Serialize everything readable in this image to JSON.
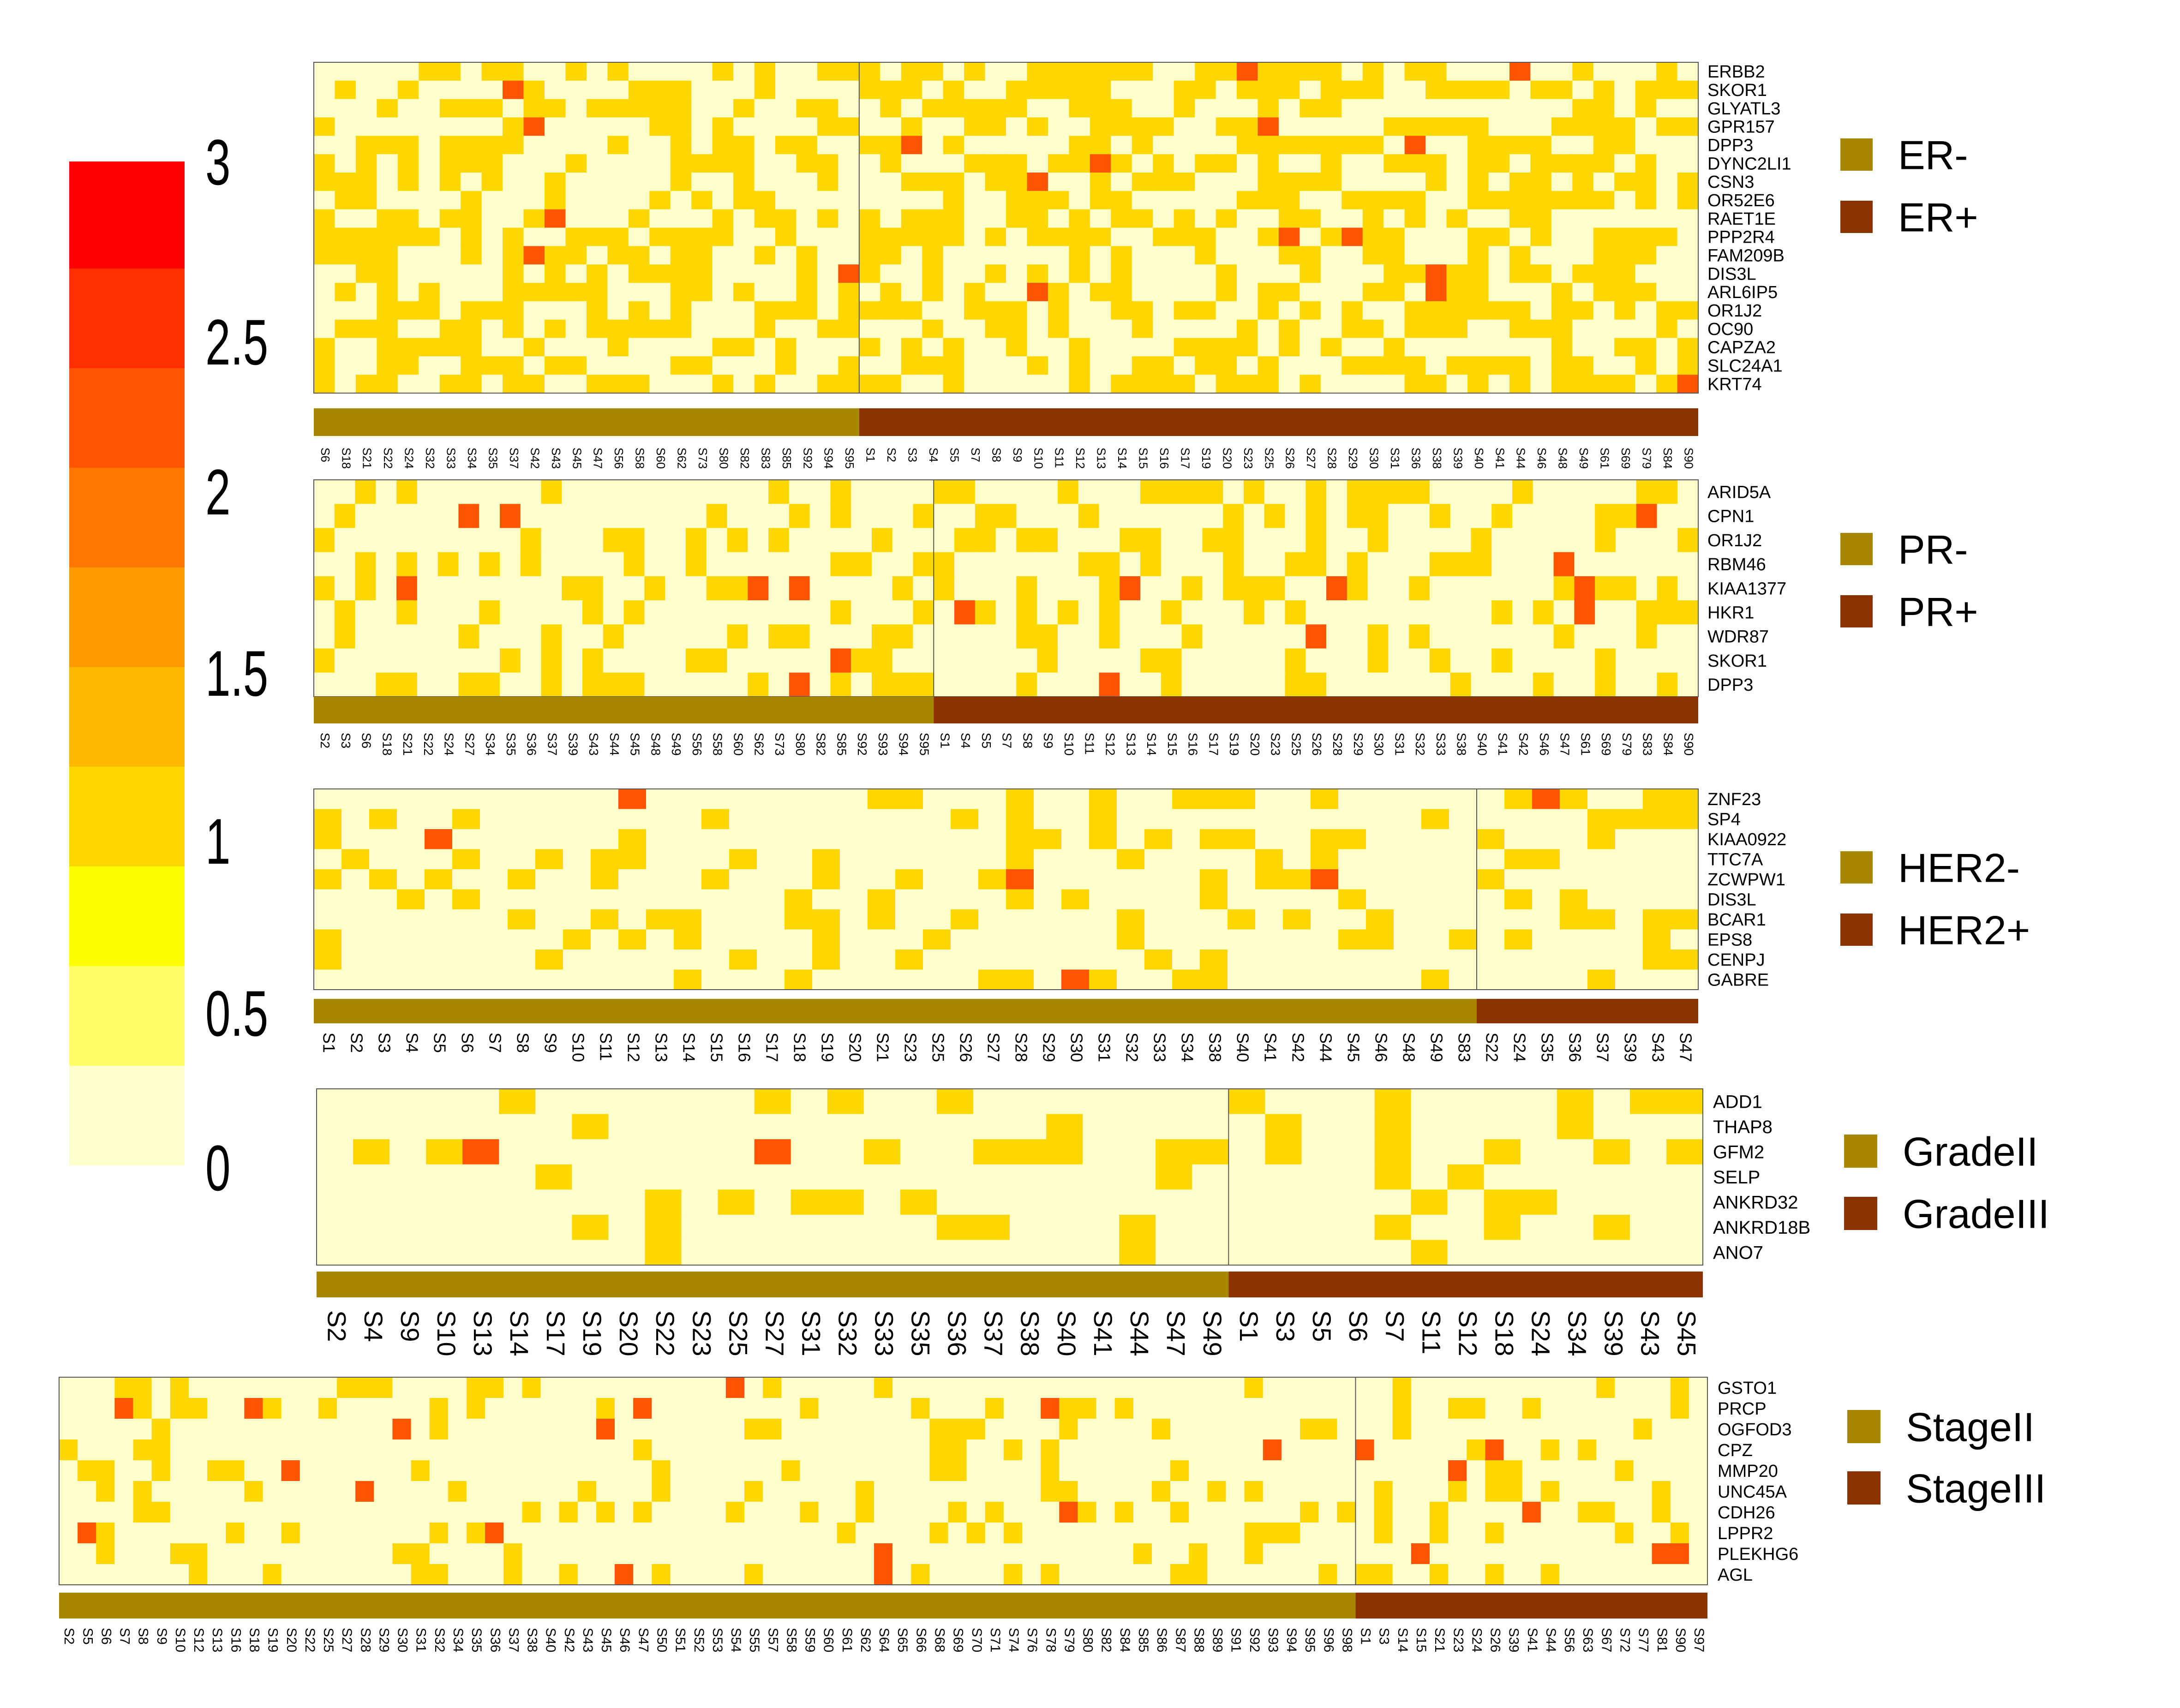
{
  "colors": {
    "scale": [
      "#FFFFCC",
      "#FFFF66",
      "#FFFF00",
      "#FFD700",
      "#FFB800",
      "#FF9900",
      "#FF7700",
      "#FF5500",
      "#FF2F00",
      "#FF0000"
    ],
    "neg": "#A88700",
    "pos": "#8A3300"
  },
  "chart_data": {
    "type": "heatmap",
    "colorbar": {
      "ticks": [
        "3",
        "2.5",
        "2",
        "1.5",
        "1",
        "0.5",
        "0"
      ],
      "range": [
        0,
        3
      ]
    },
    "panels": [
      {
        "legend": [
          "ER-",
          "ER+"
        ],
        "genes": [
          "ERBB2",
          "SKOR1",
          "GLYATL3",
          "GPR157",
          "DPP3",
          "DYNC2LI1",
          "CSN3",
          "OR52E6",
          "RAET1E",
          "PPP2R4",
          "FAM209B",
          "DIS3L",
          "ARL6IP5",
          "OR1J2",
          "OC90",
          "CAPZA2",
          "SLC24A1",
          "KRT74"
        ],
        "samples_neg": [
          "S6",
          "S18",
          "S21",
          "S22",
          "S24",
          "S32",
          "S33",
          "S34",
          "S35",
          "S37",
          "S42",
          "S43",
          "S45",
          "S47",
          "S56",
          "S58",
          "S60",
          "S62",
          "S73",
          "S80",
          "S82",
          "S83",
          "S85",
          "S92",
          "S94",
          "S95"
        ],
        "samples_pos": [
          "S1",
          "S2",
          "S3",
          "S4",
          "S5",
          "S7",
          "S8",
          "S9",
          "S10",
          "S11",
          "S12",
          "S13",
          "S14",
          "S15",
          "S16",
          "S17",
          "S19",
          "S20",
          "S23",
          "S25",
          "S26",
          "S27",
          "S28",
          "S29",
          "S30",
          "S31",
          "S36",
          "S38",
          "S39",
          "S40",
          "S41",
          "S44",
          "S46",
          "S48",
          "S49",
          "S61",
          "S69",
          "S79",
          "S84",
          "S90"
        ]
      },
      {
        "legend": [
          "PR-",
          "PR+"
        ],
        "genes": [
          "ARID5A",
          "CPN1",
          "OR1J2",
          "RBM46",
          "KIAA1377",
          "HKR1",
          "WDR87",
          "SKOR1",
          "DPP3"
        ],
        "samples_neg": [
          "S2",
          "S3",
          "S6",
          "S18",
          "S21",
          "S22",
          "S24",
          "S27",
          "S34",
          "S35",
          "S36",
          "S37",
          "S39",
          "S43",
          "S44",
          "S45",
          "S48",
          "S49",
          "S56",
          "S58",
          "S60",
          "S62",
          "S73",
          "S80",
          "S82",
          "S85",
          "S92",
          "S93",
          "S94",
          "S95"
        ],
        "samples_pos": [
          "S1",
          "S4",
          "S5",
          "S7",
          "S8",
          "S9",
          "S10",
          "S11",
          "S12",
          "S13",
          "S14",
          "S15",
          "S16",
          "S17",
          "S19",
          "S20",
          "S23",
          "S25",
          "S26",
          "S28",
          "S29",
          "S30",
          "S31",
          "S32",
          "S33",
          "S38",
          "S40",
          "S41",
          "S42",
          "S46",
          "S47",
          "S61",
          "S69",
          "S79",
          "S83",
          "S84",
          "S90"
        ]
      },
      {
        "legend": [
          "HER2-",
          "HER2+"
        ],
        "genes": [
          "ZNF23",
          "SP4",
          "KIAA0922",
          "TTC7A",
          "ZCWPW1",
          "DIS3L",
          "BCAR1",
          "EPS8",
          "CENPJ",
          "GABRE"
        ],
        "samples_neg": [
          "S1",
          "S2",
          "S3",
          "S4",
          "S5",
          "S6",
          "S7",
          "S8",
          "S9",
          "S10",
          "S11",
          "S12",
          "S13",
          "S14",
          "S15",
          "S16",
          "S17",
          "S18",
          "S19",
          "S20",
          "S21",
          "S23",
          "S25",
          "S26",
          "S27",
          "S28",
          "S29",
          "S30",
          "S31",
          "S32",
          "S33",
          "S34",
          "S38",
          "S40",
          "S41",
          "S42",
          "S44",
          "S45",
          "S46",
          "S48",
          "S49",
          "S83"
        ],
        "samples_pos": [
          "S22",
          "S24",
          "S35",
          "S36",
          "S37",
          "S39",
          "S43",
          "S47"
        ]
      },
      {
        "legend": [
          "GradeII",
          "GradeIII"
        ],
        "genes": [
          "ADD1",
          "THAP8",
          "GFM2",
          "SELP",
          "ANKRD32",
          "ANKRD18B",
          "ANO7"
        ],
        "samples_neg": [
          "S2",
          "S4",
          "S9",
          "S10",
          "S13",
          "S14",
          "S17",
          "S19",
          "S20",
          "S22",
          "S23",
          "S25",
          "S27",
          "S31",
          "S32",
          "S33",
          "S35",
          "S36",
          "S37",
          "S38",
          "S40",
          "S41",
          "S44",
          "S47",
          "S49"
        ],
        "samples_pos": [
          "S1",
          "S3",
          "S5",
          "S6",
          "S7",
          "S11",
          "S12",
          "S18",
          "S24",
          "S34",
          "S39",
          "S43",
          "S45"
        ]
      },
      {
        "legend": [
          "StageII",
          "StageIII"
        ],
        "genes": [
          "GSTO1",
          "PRCP",
          "OGFOD3",
          "CPZ",
          "MMP20",
          "UNC45A",
          "CDH26",
          "LPPR2",
          "PLEKHG6",
          "AGL"
        ],
        "samples_neg": [
          "S2",
          "S5",
          "S6",
          "S7",
          "S8",
          "S9",
          "S10",
          "S12",
          "S13",
          "S16",
          "S18",
          "S19",
          "S20",
          "S22",
          "S25",
          "S27",
          "S28",
          "S29",
          "S30",
          "S31",
          "S32",
          "S34",
          "S35",
          "S36",
          "S37",
          "S38",
          "S40",
          "S42",
          "S43",
          "S45",
          "S46",
          "S47",
          "S50",
          "S51",
          "S52",
          "S53",
          "S54",
          "S55",
          "S57",
          "S58",
          "S59",
          "S60",
          "S61",
          "S62",
          "S64",
          "S65",
          "S66",
          "S68",
          "S69",
          "S70",
          "S71",
          "S74",
          "S76",
          "S78",
          "S79",
          "S80",
          "S82",
          "S84",
          "S85",
          "S86",
          "S87",
          "S88",
          "S89",
          "S91",
          "S92",
          "S93",
          "S94",
          "S95",
          "S96",
          "S98"
        ],
        "samples_pos": [
          "S1",
          "S3",
          "S14",
          "S15",
          "S21",
          "S23",
          "S24",
          "S26",
          "S39",
          "S41",
          "S44",
          "S56",
          "S63",
          "S67",
          "S72",
          "S77",
          "S81",
          "S90",
          "S97"
        ]
      }
    ]
  }
}
